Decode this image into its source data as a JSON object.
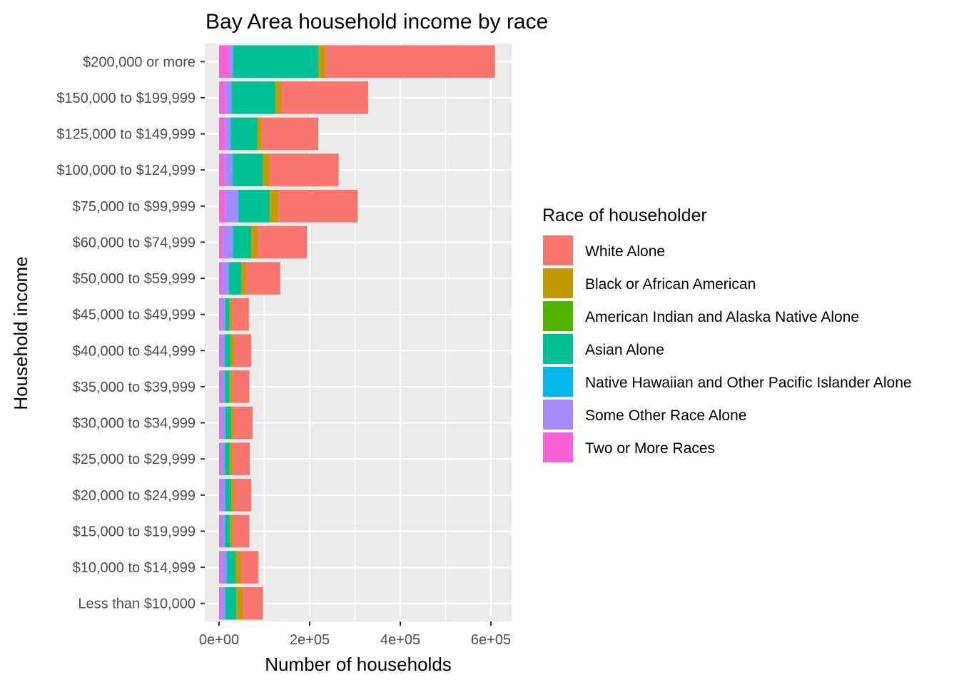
{
  "chart_data": {
    "type": "bar",
    "orientation": "horizontal",
    "stacked": true,
    "title": "Bay Area household income by race",
    "xlabel": "Number of households",
    "ylabel": "Household income",
    "xlim": [
      -20000,
      645000
    ],
    "xticks": [
      0,
      200000,
      400000,
      600000
    ],
    "xtick_labels": [
      "0e+00",
      "2e+05",
      "4e+05",
      "6e+05"
    ],
    "grid": true,
    "legend_title": "Race of householder",
    "legend_position": "right",
    "categories": [
      "$200,000 or more",
      "$150,000 to $199,999",
      "$125,000 to $149,999",
      "$100,000 to $124,999",
      "$75,000 to $99,999",
      "$60,000 to $74,999",
      "$50,000 to $59,999",
      "$45,000 to $49,999",
      "$40,000 to $44,999",
      "$35,000 to $39,999",
      "$30,000 to $34,999",
      "$25,000 to $29,999",
      "$20,000 to $24,999",
      "$15,000 to $19,999",
      "$10,000 to $14,999",
      "Less than $10,000"
    ],
    "stack_order": "Two or More Races at left, White Alone at right",
    "series": [
      {
        "name": "White Alone",
        "color": "#F8766D",
        "values": [
          375000,
          192000,
          125000,
          153000,
          175000,
          109000,
          76000,
          37000,
          38000,
          38000,
          41000,
          38000,
          38000,
          36000,
          39000,
          45000
        ]
      },
      {
        "name": "Black or African American",
        "color": "#C49A00",
        "values": [
          14000,
          12000,
          9000,
          14000,
          19000,
          14000,
          9000,
          5000,
          7000,
          5000,
          6000,
          6000,
          6000,
          6000,
          11000,
          13000
        ]
      },
      {
        "name": "American Indian and Alaska Native Alone",
        "color": "#53B400",
        "values": [
          1000,
          1000,
          1000,
          1000,
          1000,
          1000,
          1000,
          1000,
          1000,
          1000,
          1000,
          1000,
          1000,
          1000,
          1000,
          1000
        ]
      },
      {
        "name": "Asian Alone",
        "color": "#00C094",
        "values": [
          187000,
          95000,
          57000,
          65000,
          67000,
          38000,
          27000,
          9000,
          11000,
          10000,
          12000,
          10000,
          11000,
          11000,
          18000,
          23000
        ]
      },
      {
        "name": "Native Hawaiian and Other Pacific Islander Alone",
        "color": "#00B6EB",
        "values": [
          2000,
          2000,
          2000,
          2000,
          2000,
          2000,
          1000,
          1000,
          2000,
          1000,
          1000,
          1000,
          2000,
          1000,
          2000,
          2000
        ]
      },
      {
        "name": "Some Other Race Alone",
        "color": "#A58AFF",
        "values": [
          8000,
          14000,
          12000,
          17000,
          29000,
          21000,
          14000,
          8000,
          8000,
          8000,
          8000,
          7000,
          9000,
          8000,
          11000,
          8000
        ]
      },
      {
        "name": "Two or More Races",
        "color": "#FB61D7",
        "values": [
          22000,
          13000,
          13000,
          12000,
          13000,
          9000,
          7000,
          5000,
          4000,
          4000,
          5000,
          5000,
          4000,
          4000,
          5000,
          5000
        ]
      }
    ]
  }
}
